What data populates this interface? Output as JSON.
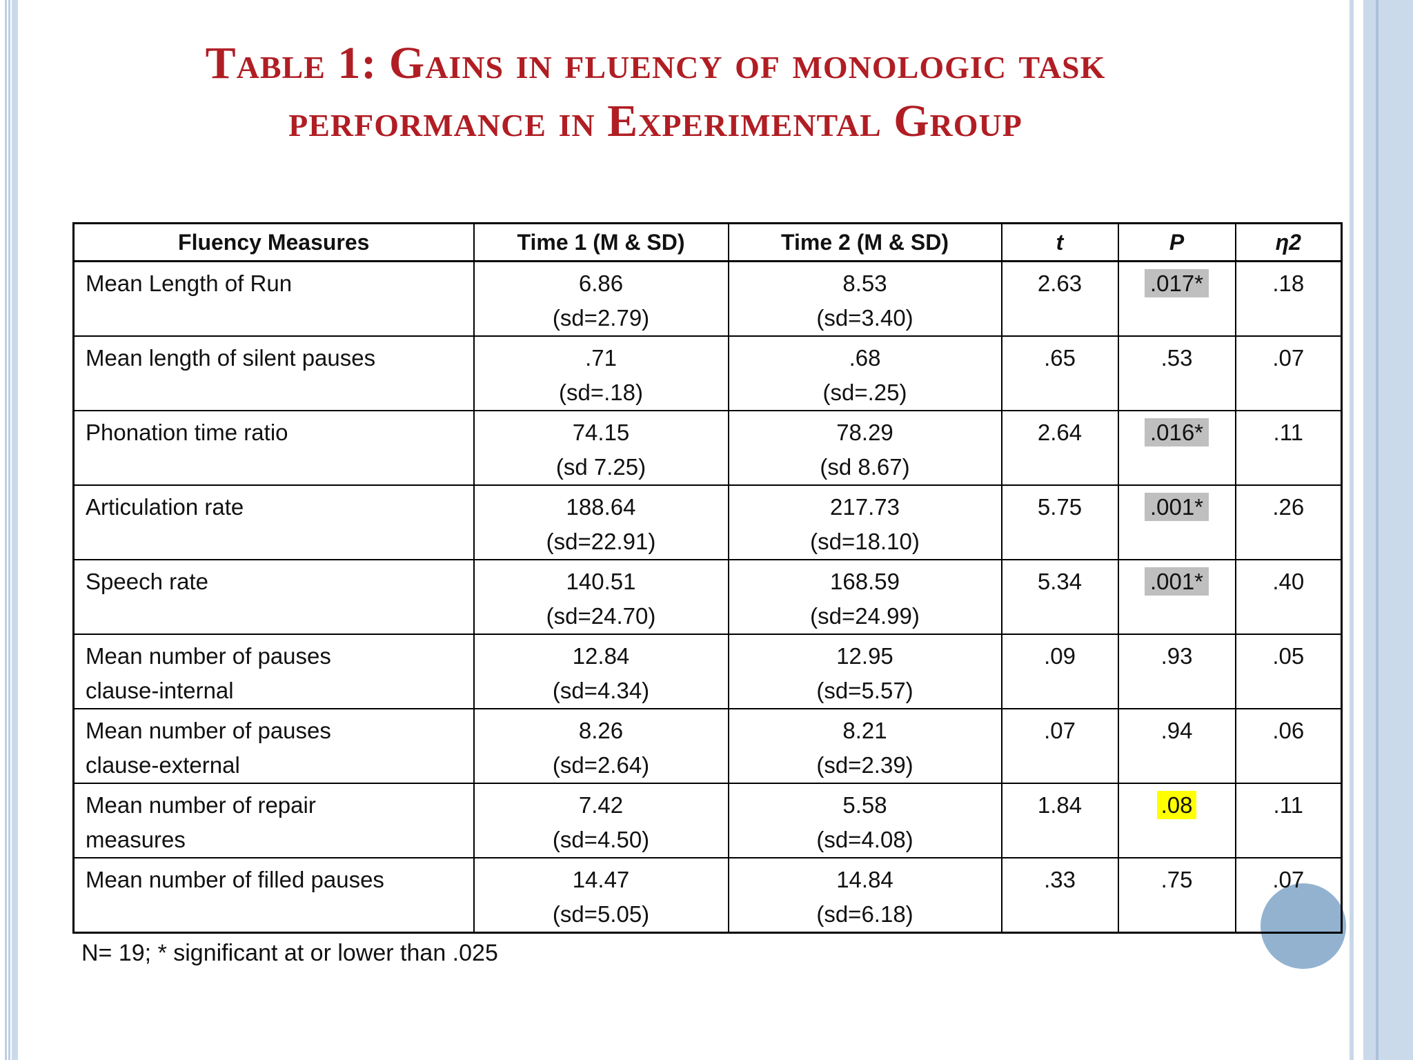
{
  "slide": {
    "title_line1": "Table 1: Gains in fluency of monologic task",
    "title_line2": "performance in Experimental Group",
    "footnote": "N= 19; * significant at or lower than .025"
  },
  "colors": {
    "title_red": "#b01e24",
    "highlight_gray": "#bfbfbf",
    "highlight_yellow": "#ffff00",
    "circle_blue": "#92b2d0",
    "edge_stripe_blue": "#cbdaea"
  },
  "table": {
    "columns": [
      {
        "label": "Fluency Measures"
      },
      {
        "label": "Time 1 (M & SD)"
      },
      {
        "label": "Time 2 (M & SD)"
      },
      {
        "label": "t"
      },
      {
        "label": "P"
      },
      {
        "label": "η2"
      }
    ],
    "rows": [
      {
        "measure": [
          "Mean Length of Run"
        ],
        "time1": "6.86",
        "time1_sd": "(sd=2.79)",
        "time2": "8.53",
        "time2_sd": "(sd=3.40)",
        "t": "2.63",
        "p": ".017*",
        "p_highlight": "gray",
        "eta2": ".18"
      },
      {
        "measure": [
          "Mean length of silent pauses"
        ],
        "time1": ".71",
        "time1_sd": "(sd=.18)",
        "time2": ".68",
        "time2_sd": "(sd=.25)",
        "t": ".65",
        "p": ".53",
        "p_highlight": "none",
        "eta2": ".07"
      },
      {
        "measure": [
          "Phonation time ratio"
        ],
        "time1": "74.15",
        "time1_sd": "(sd 7.25)",
        "time2": "78.29",
        "time2_sd": "(sd 8.67)",
        "t": "2.64",
        "p": ".016*",
        "p_highlight": "gray",
        "eta2": ".11"
      },
      {
        "measure": [
          "Articulation rate"
        ],
        "time1": "188.64",
        "time1_sd": "(sd=22.91)",
        "time2": "217.73",
        "time2_sd": "(sd=18.10)",
        "t": "5.75",
        "p": ".001*",
        "p_highlight": "gray",
        "eta2": ".26"
      },
      {
        "measure": [
          "Speech rate"
        ],
        "time1": "140.51",
        "time1_sd": "(sd=24.70)",
        "time2": "168.59",
        "time2_sd": "(sd=24.99)",
        "t": "5.34",
        "p": ".001*",
        "p_highlight": "gray",
        "eta2": ".40"
      },
      {
        "measure": [
          "Mean number of pauses",
          "clause-internal"
        ],
        "time1": "12.84",
        "time1_sd": "(sd=4.34)",
        "time2": "12.95",
        "time2_sd": "(sd=5.57)",
        "t": ".09",
        "p": ".93",
        "p_highlight": "none",
        "eta2": ".05"
      },
      {
        "measure": [
          "Mean number of pauses",
          "clause-external"
        ],
        "time1": "8.26",
        "time1_sd": "(sd=2.64)",
        "time2": "8.21",
        "time2_sd": "(sd=2.39)",
        "t": ".07",
        "p": ".94",
        "p_highlight": "none",
        "eta2": ".06"
      },
      {
        "measure": [
          "Mean number of repair",
          "measures"
        ],
        "time1": "7.42",
        "time1_sd": "(sd=4.50)",
        "time2": "5.58",
        "time2_sd": "(sd=4.08)",
        "t": "1.84",
        "p": ".08",
        "p_highlight": "yellow",
        "eta2": ".11"
      },
      {
        "measure": [
          "Mean number of filled pauses"
        ],
        "time1": "14.47",
        "time1_sd": "(sd=5.05)",
        "time2": "14.84",
        "time2_sd": "(sd=6.18)",
        "t": ".33",
        "p": ".75",
        "p_highlight": "none",
        "eta2": ".07"
      }
    ]
  }
}
